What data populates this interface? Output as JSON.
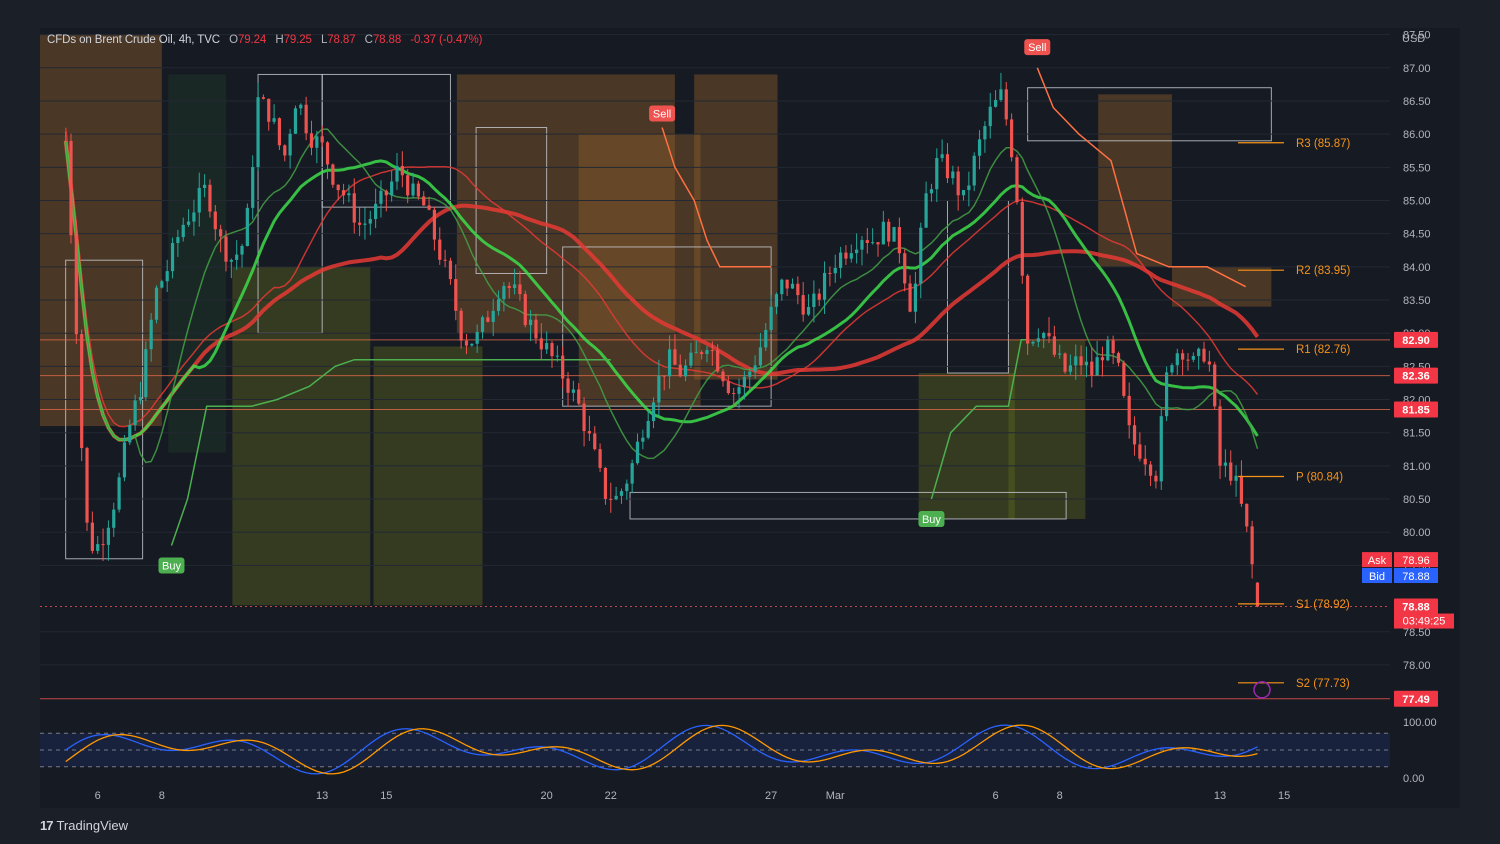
{
  "header": {
    "symbol": "CFDs on Brent Crude Oil, 4h, TVC",
    "open_label": "O",
    "open": "79.24",
    "high_label": "H",
    "high": "79.25",
    "low_label": "L",
    "low": "78.87",
    "close_label": "C",
    "close": "78.88",
    "change": "-0.37 (-0.47%)"
  },
  "currency": "USD",
  "brand": {
    "logo": "17",
    "name": "TradingView"
  },
  "colors": {
    "background": "#1b1f27",
    "up": "#26a69a",
    "down": "#ef5350",
    "sell_signal": "#ef5350",
    "buy_signal": "#4caf50",
    "pivot": "#f7931a",
    "price_tag": "#f23645",
    "bid": "#2962ff"
  },
  "chart_data": {
    "type": "candlestick",
    "symbol": "CFDs on Brent Crude Oil",
    "timeframe": "4h",
    "ylim": [
      77.2,
      87.6
    ],
    "y_ticks": [
      "87.50",
      "87.00",
      "86.50",
      "86.00",
      "85.50",
      "85.00",
      "84.50",
      "84.00",
      "83.50",
      "83.00",
      "82.50",
      "82.00",
      "81.50",
      "81.00",
      "80.50",
      "80.00",
      "79.50",
      "78.50",
      "78.00"
    ],
    "x_ticks": [
      {
        "label": "6",
        "day": 6
      },
      {
        "label": "8",
        "day": 8
      },
      {
        "label": "13",
        "day": 13
      },
      {
        "label": "15",
        "day": 15
      },
      {
        "label": "20",
        "day": 20
      },
      {
        "label": "22",
        "day": 22
      },
      {
        "label": "27",
        "day": 27
      },
      {
        "label": "Mar",
        "day": 29
      },
      {
        "label": "6",
        "day": 34
      },
      {
        "label": "8",
        "day": 36
      },
      {
        "label": "13",
        "day": 41
      },
      {
        "label": "15",
        "day": 43
      }
    ],
    "close_path": [
      [
        5.0,
        85.9
      ],
      [
        5.3,
        83.5
      ],
      [
        5.6,
        80.2
      ],
      [
        5.9,
        79.7
      ],
      [
        6.2,
        80.0
      ],
      [
        6.6,
        80.6
      ],
      [
        7.0,
        81.6
      ],
      [
        7.4,
        82.3
      ],
      [
        7.8,
        83.6
      ],
      [
        8.2,
        84.0
      ],
      [
        8.6,
        84.6
      ],
      [
        9.0,
        84.9
      ],
      [
        9.4,
        85.2
      ],
      [
        9.8,
        84.4
      ],
      [
        10.2,
        84.1
      ],
      [
        10.6,
        84.4
      ],
      [
        11.0,
        86.5
      ],
      [
        11.4,
        86.3
      ],
      [
        11.8,
        85.6
      ],
      [
        12.2,
        86.6
      ],
      [
        12.6,
        86.0
      ],
      [
        13.0,
        85.8
      ],
      [
        13.4,
        85.3
      ],
      [
        13.8,
        85.0
      ],
      [
        14.2,
        84.6
      ],
      [
        14.6,
        84.8
      ],
      [
        15.0,
        85.1
      ],
      [
        15.4,
        85.5
      ],
      [
        15.8,
        85.1
      ],
      [
        16.2,
        84.9
      ],
      [
        16.6,
        84.3
      ],
      [
        17.0,
        83.7
      ],
      [
        17.4,
        82.9
      ],
      [
        17.8,
        82.9
      ],
      [
        18.2,
        83.3
      ],
      [
        18.6,
        83.8
      ],
      [
        19.0,
        83.6
      ],
      [
        19.4,
        83.2
      ],
      [
        19.8,
        82.9
      ],
      [
        20.2,
        82.6
      ],
      [
        20.6,
        82.3
      ],
      [
        21.0,
        81.9
      ],
      [
        21.4,
        81.3
      ],
      [
        21.8,
        80.6
      ],
      [
        22.2,
        80.5
      ],
      [
        22.6,
        80.9
      ],
      [
        23.0,
        81.6
      ],
      [
        23.4,
        82.2
      ],
      [
        23.8,
        82.6
      ],
      [
        24.2,
        82.4
      ],
      [
        24.6,
        82.6
      ],
      [
        25.0,
        82.9
      ],
      [
        25.4,
        82.5
      ],
      [
        25.8,
        82.1
      ],
      [
        26.2,
        82.3
      ],
      [
        26.6,
        82.7
      ],
      [
        27.0,
        83.3
      ],
      [
        27.4,
        83.8
      ],
      [
        27.8,
        83.6
      ],
      [
        28.2,
        83.3
      ],
      [
        28.6,
        83.7
      ],
      [
        29.0,
        84.1
      ],
      [
        29.4,
        84.3
      ],
      [
        29.8,
        84.5
      ],
      [
        30.2,
        84.4
      ],
      [
        30.6,
        84.6
      ],
      [
        31.0,
        84.3
      ],
      [
        31.4,
        83.3
      ],
      [
        31.8,
        85.0
      ],
      [
        32.2,
        85.6
      ],
      [
        32.6,
        85.4
      ],
      [
        33.0,
        85.0
      ],
      [
        33.4,
        85.7
      ],
      [
        33.8,
        86.3
      ],
      [
        34.2,
        86.6
      ],
      [
        34.6,
        85.5
      ],
      [
        35.0,
        82.9
      ],
      [
        35.4,
        83.1
      ],
      [
        35.8,
        82.7
      ],
      [
        36.2,
        82.4
      ],
      [
        36.6,
        82.6
      ],
      [
        37.0,
        82.4
      ],
      [
        37.4,
        82.8
      ],
      [
        37.8,
        82.5
      ],
      [
        38.2,
        81.4
      ],
      [
        38.6,
        81.2
      ],
      [
        39.0,
        80.9
      ],
      [
        39.4,
        82.6
      ],
      [
        39.8,
        82.8
      ],
      [
        40.2,
        82.5
      ],
      [
        40.6,
        82.8
      ],
      [
        41.0,
        81.0
      ],
      [
        41.4,
        80.9
      ],
      [
        41.8,
        80.1
      ],
      [
        42.2,
        78.88
      ]
    ],
    "pivot_levels": [
      {
        "label": "R3 (85.87)",
        "value": 85.87
      },
      {
        "label": "R2 (83.95)",
        "value": 83.95
      },
      {
        "label": "R1 (82.76)",
        "value": 82.76
      },
      {
        "label": "P (80.84)",
        "value": 80.84
      },
      {
        "label": "S1 (78.92)",
        "value": 78.92
      },
      {
        "label": "S2 (77.73)",
        "value": 77.73
      }
    ],
    "horizontal_lines": [
      82.9,
      82.36,
      81.85,
      78.88,
      77.49
    ],
    "price_tags": [
      {
        "label": "82.90",
        "value": 82.9
      },
      {
        "label": "82.36",
        "value": 82.36
      },
      {
        "label": "81.85",
        "value": 81.85
      },
      {
        "label": "78.88",
        "value": 78.88
      },
      {
        "label": "77.49",
        "value": 77.49
      }
    ],
    "ask": {
      "label": "Ask",
      "value": "78.96"
    },
    "bid": {
      "label": "Bid",
      "value": "78.88"
    },
    "countdown": "03:49:25",
    "signals": [
      {
        "label": "Buy",
        "day": 8.3,
        "price": 79.8
      },
      {
        "label": "Sell",
        "day": 23.6,
        "price": 86.1
      },
      {
        "label": "Buy",
        "day": 32.0,
        "price": 80.5
      },
      {
        "label": "Sell",
        "day": 35.3,
        "price": 87.1
      }
    ],
    "oscillator": {
      "ylim": [
        0,
        100
      ],
      "ticks": [
        "100.00",
        "0.00"
      ],
      "levels": [
        80,
        50,
        20
      ]
    }
  }
}
